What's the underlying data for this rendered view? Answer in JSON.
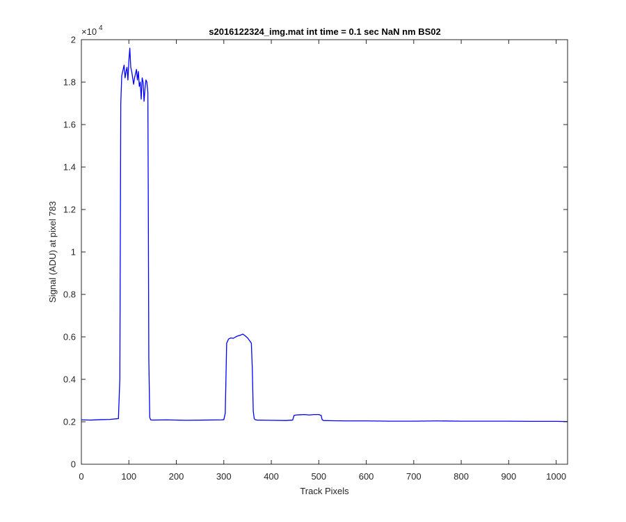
{
  "chart_data": {
    "type": "line",
    "title": "s2016122324_img.mat int time = 0.1 sec  NaN nm BS02",
    "xlabel": "Track Pixels",
    "ylabel": "Signal (ADU) at pixel 783",
    "xlim": [
      0,
      1024
    ],
    "ylim": [
      0,
      20000
    ],
    "y_exponent_label": "×10",
    "y_exponent_power": "4",
    "x_ticks": [
      0,
      100,
      200,
      300,
      400,
      500,
      600,
      700,
      800,
      900,
      1000
    ],
    "x_tick_labels": [
      "0",
      "100",
      "200",
      "300",
      "400",
      "500",
      "600",
      "700",
      "800",
      "900",
      "1000"
    ],
    "y_ticks": [
      0,
      2000,
      4000,
      6000,
      8000,
      10000,
      12000,
      14000,
      16000,
      18000,
      20000
    ],
    "y_tick_labels": [
      "0",
      "0.2",
      "0.4",
      "0.6",
      "0.8",
      "1",
      "1.2",
      "1.4",
      "1.6",
      "1.8",
      "2"
    ],
    "grid": false,
    "line_color": "#0000ff",
    "series": [
      {
        "x": [
          0,
          20,
          40,
          60,
          78,
          81,
          83,
          85,
          88,
          90,
          92,
          94,
          96,
          98,
          100,
          102,
          104,
          106,
          108,
          110,
          112,
          114,
          116,
          118,
          120,
          122,
          124,
          126,
          128,
          130,
          132,
          134,
          136,
          138,
          140,
          141,
          142,
          144,
          146,
          150,
          180,
          220,
          260,
          295,
          300,
          303,
          306,
          310,
          315,
          320,
          325,
          330,
          335,
          340,
          345,
          350,
          355,
          358,
          360,
          362,
          364,
          366,
          370,
          400,
          430,
          445,
          448,
          452,
          460,
          470,
          480,
          490,
          500,
          505,
          507,
          510,
          530,
          560,
          600,
          650,
          700,
          750,
          800,
          850,
          900,
          950,
          1000,
          1024
        ],
        "y": [
          2090,
          2080,
          2100,
          2110,
          2150,
          4000,
          17000,
          18300,
          18600,
          18800,
          18200,
          18500,
          18700,
          18100,
          19000,
          19600,
          18700,
          18500,
          18200,
          17900,
          18200,
          18400,
          18600,
          18100,
          18500,
          17800,
          18000,
          17200,
          18200,
          18000,
          17100,
          17700,
          18100,
          18000,
          17500,
          12000,
          5000,
          2200,
          2090,
          2080,
          2090,
          2070,
          2080,
          2090,
          2100,
          2400,
          5700,
          5900,
          5950,
          5930,
          6000,
          6050,
          6080,
          6130,
          6050,
          5950,
          5800,
          5700,
          4500,
          2500,
          2150,
          2100,
          2080,
          2070,
          2060,
          2080,
          2300,
          2320,
          2330,
          2340,
          2320,
          2340,
          2340,
          2300,
          2100,
          2060,
          2050,
          2040,
          2040,
          2030,
          2030,
          2040,
          2030,
          2030,
          2030,
          2020,
          2020,
          2010
        ]
      }
    ]
  }
}
